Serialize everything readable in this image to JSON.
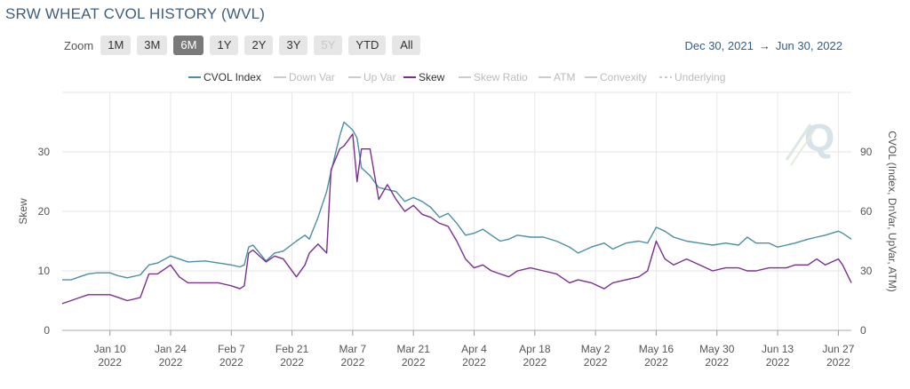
{
  "title": "SRW WHEAT CVOL HISTORY (WVL)",
  "zoom": {
    "label": "Zoom",
    "buttons": [
      "1M",
      "3M",
      "6M",
      "1Y",
      "2Y",
      "3Y",
      "5Y",
      "YTD",
      "All"
    ],
    "selected": "6M",
    "disabled": [
      "5Y"
    ]
  },
  "range": {
    "from": "Dec 30, 2021",
    "arrow": "→",
    "to": "Jun 30, 2022"
  },
  "colors": {
    "cvol": "#4a90a4",
    "skew": "#7b2f8f",
    "inactive": "#cccccc",
    "grid": "#e6e6e6"
  },
  "chart_data": {
    "type": "line",
    "legend_placement": "top-center",
    "legend": [
      {
        "name": "CVOL Index",
        "active": true,
        "dashed": false
      },
      {
        "name": "Down Var",
        "active": false,
        "dashed": false
      },
      {
        "name": "Up Var",
        "active": false,
        "dashed": false
      },
      {
        "name": "Skew",
        "active": true,
        "dashed": false
      },
      {
        "name": "Skew Ratio",
        "active": false,
        "dashed": false
      },
      {
        "name": "ATM",
        "active": false,
        "dashed": false
      },
      {
        "name": "Convexity",
        "active": false,
        "dashed": false
      },
      {
        "name": "Underlying",
        "active": false,
        "dashed": true
      }
    ],
    "x_ticks": [
      {
        "label": "Jan 10",
        "year": "2022",
        "date": "2022-01-10"
      },
      {
        "label": "Jan 24",
        "year": "2022",
        "date": "2022-01-24"
      },
      {
        "label": "Feb 7",
        "year": "2022",
        "date": "2022-02-07"
      },
      {
        "label": "Feb 21",
        "year": "2022",
        "date": "2022-02-21"
      },
      {
        "label": "Mar 7",
        "year": "2022",
        "date": "2022-03-07"
      },
      {
        "label": "Mar 21",
        "year": "2022",
        "date": "2022-03-21"
      },
      {
        "label": "Apr 4",
        "year": "2022",
        "date": "2022-04-04"
      },
      {
        "label": "Apr 18",
        "year": "2022",
        "date": "2022-04-18"
      },
      {
        "label": "May 2",
        "year": "2022",
        "date": "2022-05-02"
      },
      {
        "label": "May 16",
        "year": "2022",
        "date": "2022-05-16"
      },
      {
        "label": "May 30",
        "year": "2022",
        "date": "2022-05-30"
      },
      {
        "label": "Jun 13",
        "year": "2022",
        "date": "2022-06-13"
      },
      {
        "label": "Jun 27",
        "year": "2022",
        "date": "2022-06-27"
      }
    ],
    "x_range": [
      "2021-12-30",
      "2022-06-30"
    ],
    "left_axis": {
      "title": "Skew",
      "ticks": [
        "0",
        "10",
        "20",
        "30"
      ],
      "ylim": [
        0,
        40
      ]
    },
    "right_axis": {
      "title": "CVOL (Index, DnVar, UpVar, ATM)",
      "ticks": [
        "0",
        "30",
        "60",
        "90"
      ],
      "ylim": [
        0,
        120
      ]
    },
    "grid": true,
    "series": [
      {
        "name": "CVOL Index",
        "axis": "right",
        "points": [
          [
            "2021-12-30",
            25.5
          ],
          [
            "2022-01-01",
            25.5
          ],
          [
            "2022-01-03",
            27
          ],
          [
            "2022-01-05",
            28.5
          ],
          [
            "2022-01-07",
            29
          ],
          [
            "2022-01-10",
            29
          ],
          [
            "2022-01-12",
            27.5
          ],
          [
            "2022-01-14",
            26.5
          ],
          [
            "2022-01-17",
            28
          ],
          [
            "2022-01-19",
            33
          ],
          [
            "2022-01-21",
            34
          ],
          [
            "2022-01-24",
            37.5
          ],
          [
            "2022-01-26",
            36
          ],
          [
            "2022-01-28",
            34.5
          ],
          [
            "2022-02-01",
            35
          ],
          [
            "2022-02-04",
            34
          ],
          [
            "2022-02-07",
            33
          ],
          [
            "2022-02-09",
            32
          ],
          [
            "2022-02-10",
            33
          ],
          [
            "2022-02-11",
            42
          ],
          [
            "2022-02-12",
            43
          ],
          [
            "2022-02-15",
            35
          ],
          [
            "2022-02-17",
            39
          ],
          [
            "2022-02-19",
            40
          ],
          [
            "2022-02-22",
            45
          ],
          [
            "2022-02-24",
            48
          ],
          [
            "2022-02-25",
            46
          ],
          [
            "2022-02-27",
            57
          ],
          [
            "2022-03-01",
            70
          ],
          [
            "2022-03-02",
            80
          ],
          [
            "2022-03-04",
            98
          ],
          [
            "2022-03-05",
            105
          ],
          [
            "2022-03-07",
            101
          ],
          [
            "2022-03-08",
            97
          ],
          [
            "2022-03-09",
            82
          ],
          [
            "2022-03-11",
            78
          ],
          [
            "2022-03-13",
            72
          ],
          [
            "2022-03-15",
            71
          ],
          [
            "2022-03-17",
            70
          ],
          [
            "2022-03-19",
            65
          ],
          [
            "2022-03-21",
            67
          ],
          [
            "2022-03-23",
            65
          ],
          [
            "2022-03-25",
            62
          ],
          [
            "2022-03-27",
            57
          ],
          [
            "2022-03-29",
            59
          ],
          [
            "2022-03-31",
            54
          ],
          [
            "2022-04-02",
            48
          ],
          [
            "2022-04-04",
            49
          ],
          [
            "2022-04-06",
            51
          ],
          [
            "2022-04-08",
            48
          ],
          [
            "2022-04-10",
            45
          ],
          [
            "2022-04-12",
            46
          ],
          [
            "2022-04-14",
            48
          ],
          [
            "2022-04-17",
            47
          ],
          [
            "2022-04-20",
            47
          ],
          [
            "2022-04-23",
            45
          ],
          [
            "2022-04-26",
            42
          ],
          [
            "2022-04-28",
            39
          ],
          [
            "2022-05-01",
            42
          ],
          [
            "2022-05-04",
            44
          ],
          [
            "2022-05-06",
            41
          ],
          [
            "2022-05-09",
            44
          ],
          [
            "2022-05-12",
            45
          ],
          [
            "2022-05-14",
            44
          ],
          [
            "2022-05-16",
            52
          ],
          [
            "2022-05-18",
            50
          ],
          [
            "2022-05-20",
            47
          ],
          [
            "2022-05-23",
            45
          ],
          [
            "2022-05-26",
            44
          ],
          [
            "2022-05-29",
            43
          ],
          [
            "2022-06-01",
            44
          ],
          [
            "2022-06-04",
            43
          ],
          [
            "2022-06-06",
            47
          ],
          [
            "2022-06-08",
            44
          ],
          [
            "2022-06-11",
            44
          ],
          [
            "2022-06-13",
            42
          ],
          [
            "2022-06-15",
            43
          ],
          [
            "2022-06-17",
            44
          ],
          [
            "2022-06-20",
            46
          ],
          [
            "2022-06-22",
            47
          ],
          [
            "2022-06-24",
            48
          ],
          [
            "2022-06-27",
            50
          ],
          [
            "2022-06-28",
            49
          ],
          [
            "2022-06-30",
            46
          ]
        ]
      },
      {
        "name": "Skew",
        "axis": "left",
        "points": [
          [
            "2021-12-30",
            4.5
          ],
          [
            "2022-01-01",
            5
          ],
          [
            "2022-01-03",
            5.5
          ],
          [
            "2022-01-05",
            6
          ],
          [
            "2022-01-07",
            6
          ],
          [
            "2022-01-10",
            6
          ],
          [
            "2022-01-12",
            5.5
          ],
          [
            "2022-01-14",
            5
          ],
          [
            "2022-01-17",
            5.5
          ],
          [
            "2022-01-19",
            9.5
          ],
          [
            "2022-01-21",
            9.5
          ],
          [
            "2022-01-24",
            11
          ],
          [
            "2022-01-26",
            9
          ],
          [
            "2022-01-28",
            8
          ],
          [
            "2022-02-01",
            8
          ],
          [
            "2022-02-04",
            8
          ],
          [
            "2022-02-07",
            7.5
          ],
          [
            "2022-02-09",
            7
          ],
          [
            "2022-02-10",
            7.5
          ],
          [
            "2022-02-11",
            13
          ],
          [
            "2022-02-12",
            13.5
          ],
          [
            "2022-02-15",
            11.5
          ],
          [
            "2022-02-17",
            12.5
          ],
          [
            "2022-02-19",
            12
          ],
          [
            "2022-02-22",
            9
          ],
          [
            "2022-02-24",
            11
          ],
          [
            "2022-02-25",
            13
          ],
          [
            "2022-02-27",
            14.5
          ],
          [
            "2022-03-01",
            13
          ],
          [
            "2022-03-02",
            27
          ],
          [
            "2022-03-04",
            30.5
          ],
          [
            "2022-03-05",
            31
          ],
          [
            "2022-03-07",
            33
          ],
          [
            "2022-03-08",
            25
          ],
          [
            "2022-03-09",
            30.5
          ],
          [
            "2022-03-11",
            30.5
          ],
          [
            "2022-03-13",
            22
          ],
          [
            "2022-03-15",
            24.5
          ],
          [
            "2022-03-17",
            22
          ],
          [
            "2022-03-19",
            20
          ],
          [
            "2022-03-21",
            21
          ],
          [
            "2022-03-23",
            19.5
          ],
          [
            "2022-03-25",
            19
          ],
          [
            "2022-03-27",
            18
          ],
          [
            "2022-03-29",
            17.5
          ],
          [
            "2022-03-31",
            15
          ],
          [
            "2022-04-02",
            12
          ],
          [
            "2022-04-04",
            10.5
          ],
          [
            "2022-04-06",
            11
          ],
          [
            "2022-04-08",
            10
          ],
          [
            "2022-04-10",
            9.5
          ],
          [
            "2022-04-12",
            9
          ],
          [
            "2022-04-14",
            10
          ],
          [
            "2022-04-17",
            10.5
          ],
          [
            "2022-04-20",
            10
          ],
          [
            "2022-04-23",
            9.5
          ],
          [
            "2022-04-26",
            8
          ],
          [
            "2022-04-28",
            8.5
          ],
          [
            "2022-05-01",
            8
          ],
          [
            "2022-05-04",
            7
          ],
          [
            "2022-05-06",
            8
          ],
          [
            "2022-05-09",
            8.5
          ],
          [
            "2022-05-12",
            9
          ],
          [
            "2022-05-14",
            10
          ],
          [
            "2022-05-16",
            15
          ],
          [
            "2022-05-18",
            12
          ],
          [
            "2022-05-20",
            11
          ],
          [
            "2022-05-23",
            12
          ],
          [
            "2022-05-26",
            11
          ],
          [
            "2022-05-29",
            10
          ],
          [
            "2022-06-01",
            10.5
          ],
          [
            "2022-06-04",
            10.5
          ],
          [
            "2022-06-06",
            10
          ],
          [
            "2022-06-08",
            10
          ],
          [
            "2022-06-11",
            10.5
          ],
          [
            "2022-06-13",
            10.5
          ],
          [
            "2022-06-15",
            10.5
          ],
          [
            "2022-06-17",
            11
          ],
          [
            "2022-06-20",
            11
          ],
          [
            "2022-06-22",
            12
          ],
          [
            "2022-06-24",
            11
          ],
          [
            "2022-06-27",
            12
          ],
          [
            "2022-06-28",
            11
          ],
          [
            "2022-06-30",
            8
          ]
        ]
      }
    ]
  }
}
